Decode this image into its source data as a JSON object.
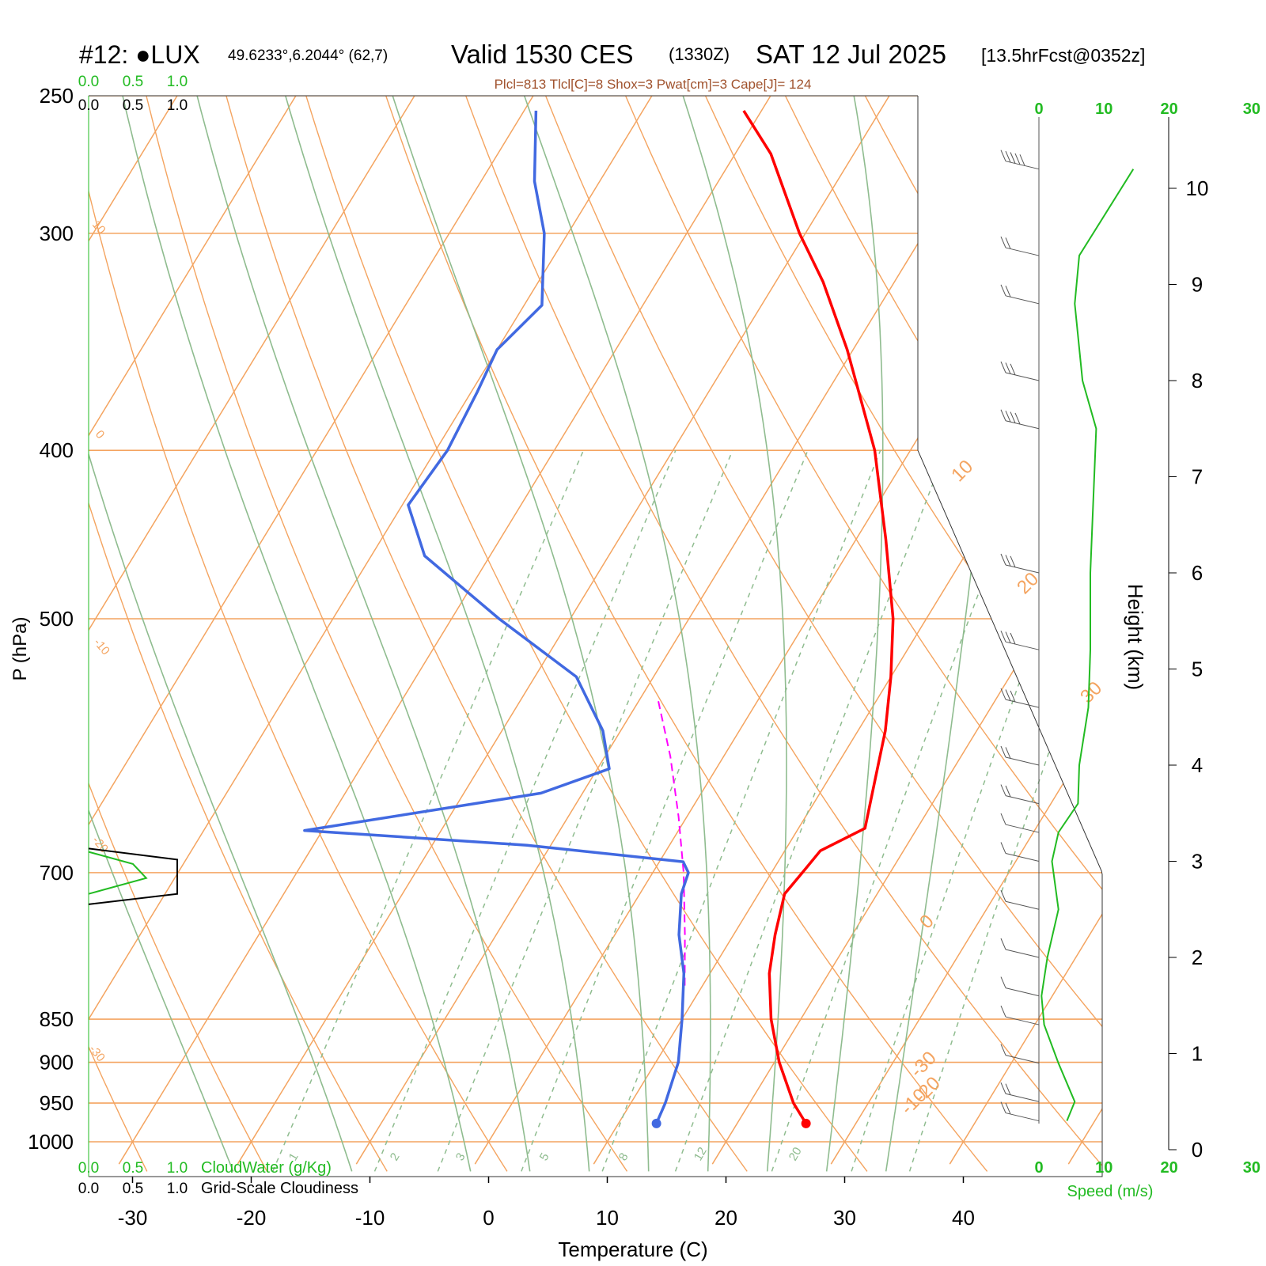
{
  "header": {
    "station_id": "#12: ",
    "station_marker": "●",
    "station_name": "LUX",
    "coords": "49.6233°,6.2044° (62,7)",
    "valid_main": "Valid 1530 CES",
    "valid_zulu": "(1330Z)",
    "valid_date": "SAT 12 Jul 2025",
    "forecast": "[13.5hrFcst@0352z]"
  },
  "indices": "Plcl=813 Tlcl[C]=8 Shox=3 Pwat[cm]=3 Cape[J]= 124",
  "colors": {
    "temperature": "#ff0000",
    "dewpoint": "#4169e1",
    "parcel": "#ff00ff",
    "isotherm_isobar": "#f4a460",
    "dry_adiabat": "#f4a460",
    "moist_adiabat": "#8fbc8f",
    "mixing_ratio": "#8fbc8f",
    "cloud_water": "#22bb22",
    "cloudiness": "#000000",
    "speed": "#22bb22"
  },
  "chart_data": {
    "type": "skew-t",
    "xlabel": "Temperature (C)",
    "ylabel": "P (hPa)",
    "xticks": [
      -30,
      -20,
      -10,
      0,
      10,
      20,
      30,
      40
    ],
    "yticks": [
      250,
      300,
      400,
      500,
      700,
      850,
      900,
      950,
      1000
    ],
    "xlim": [
      -33.5,
      36
    ],
    "ylim": [
      1030,
      250
    ],
    "height_axis": {
      "label": "Height (km)",
      "ticks": [
        0,
        1,
        2,
        3,
        4,
        5,
        6,
        7,
        8,
        9,
        10
      ]
    },
    "speed_axis": {
      "label": "Speed (m/s)",
      "ticks": [
        "0",
        "10",
        "20",
        "30"
      ]
    },
    "cloud_axes": {
      "cloud_water_label": "CloudWater (g/Kg)",
      "cloudiness_label": "Grid-Scale Cloudiness",
      "cloud_water_ticks": [
        "0.0",
        "0.5",
        "1.0"
      ],
      "cloudiness_ticks": [
        "0.0",
        "0.5",
        "1.0"
      ]
    },
    "isotherm_labels": [
      "-30",
      "-20",
      "-10",
      "0",
      "10",
      "20",
      "30"
    ],
    "dry_adiabat_labels": [
      "10",
      "0",
      "-10",
      "-20",
      "-30"
    ],
    "mixing_ratio_labels": [
      "1",
      "2",
      "3",
      "5",
      "8",
      "12",
      "20"
    ],
    "temperature": [
      {
        "p": 976,
        "t": 25.8
      },
      {
        "p": 950,
        "t": 23.7
      },
      {
        "p": 900,
        "t": 20.4
      },
      {
        "p": 850,
        "t": 17.5
      },
      {
        "p": 800,
        "t": 15.0
      },
      {
        "p": 760,
        "t": 13.5
      },
      {
        "p": 720,
        "t": 12.2
      },
      {
        "p": 700,
        "t": 12.6
      },
      {
        "p": 680,
        "t": 13.0
      },
      {
        "p": 660,
        "t": 15.6
      },
      {
        "p": 620,
        "t": 14.0
      },
      {
        "p": 580,
        "t": 12.3
      },
      {
        "p": 540,
        "t": 10.0
      },
      {
        "p": 500,
        "t": 7.2
      },
      {
        "p": 450,
        "t": 2.5
      },
      {
        "p": 400,
        "t": -3.0
      },
      {
        "p": 350,
        "t": -10.5
      },
      {
        "p": 320,
        "t": -16.0
      },
      {
        "p": 300,
        "t": -20.5
      },
      {
        "p": 270,
        "t": -27.0
      },
      {
        "p": 255,
        "t": -31.5
      }
    ],
    "dewpoint": [
      {
        "p": 976,
        "t": 13.2
      },
      {
        "p": 950,
        "t": 12.9
      },
      {
        "p": 900,
        "t": 11.9
      },
      {
        "p": 850,
        "t": 10.0
      },
      {
        "p": 800,
        "t": 7.8
      },
      {
        "p": 760,
        "t": 5.4
      },
      {
        "p": 720,
        "t": 3.5
      },
      {
        "p": 700,
        "t": 3.0
      },
      {
        "p": 690,
        "t": 2.0
      },
      {
        "p": 675,
        "t": -12.0
      },
      {
        "p": 662,
        "t": -31.5
      },
      {
        "p": 630,
        "t": -13.5
      },
      {
        "p": 610,
        "t": -9.0
      },
      {
        "p": 580,
        "t": -11.5
      },
      {
        "p": 540,
        "t": -16.5
      },
      {
        "p": 500,
        "t": -26.0
      },
      {
        "p": 460,
        "t": -35.5
      },
      {
        "p": 430,
        "t": -39.5
      },
      {
        "p": 400,
        "t": -39.0
      },
      {
        "p": 370,
        "t": -39.5
      },
      {
        "p": 350,
        "t": -40.0
      },
      {
        "p": 330,
        "t": -38.5
      },
      {
        "p": 300,
        "t": -42.0
      },
      {
        "p": 280,
        "t": -45.5
      },
      {
        "p": 255,
        "t": -49.0
      }
    ],
    "parcel": [
      {
        "p": 813,
        "t": 8.5
      },
      {
        "p": 760,
        "t": 5.9
      },
      {
        "p": 700,
        "t": 2.6
      },
      {
        "p": 650,
        "t": -0.7
      },
      {
        "p": 600,
        "t": -4.5
      },
      {
        "p": 555,
        "t": -8.6
      }
    ],
    "cloud_water": [
      {
        "p": 681,
        "t": 0.0
      },
      {
        "p": 692,
        "t": 0.5
      },
      {
        "p": 705,
        "t": 0.65
      },
      {
        "p": 720,
        "t": 0.0
      }
    ],
    "cloudiness": [
      {
        "p": 678,
        "t": 0.0
      },
      {
        "p": 688,
        "t": 1.0
      },
      {
        "p": 720,
        "t": 1.0
      },
      {
        "p": 730,
        "t": 0.0
      }
    ],
    "wind_speed": [
      {
        "z": 0.3,
        "s": 4.3
      },
      {
        "z": 0.5,
        "s": 5.5
      },
      {
        "z": 0.9,
        "s": 3.0
      },
      {
        "z": 1.3,
        "s": 0.8
      },
      {
        "z": 1.6,
        "s": 0.4
      },
      {
        "z": 2.0,
        "s": 1.3
      },
      {
        "z": 2.5,
        "s": 3.0
      },
      {
        "z": 3.0,
        "s": 2.0
      },
      {
        "z": 3.3,
        "s": 3.0
      },
      {
        "z": 3.6,
        "s": 6.0
      },
      {
        "z": 4.0,
        "s": 6.2
      },
      {
        "z": 4.6,
        "s": 7.6
      },
      {
        "z": 5.2,
        "s": 7.9
      },
      {
        "z": 6.0,
        "s": 7.9
      },
      {
        "z": 7.5,
        "s": 8.8
      },
      {
        "z": 8.0,
        "s": 6.7
      },
      {
        "z": 8.8,
        "s": 5.5
      },
      {
        "z": 9.3,
        "s": 6.2
      },
      {
        "z": 10.2,
        "s": 14.5
      }
    ]
  }
}
